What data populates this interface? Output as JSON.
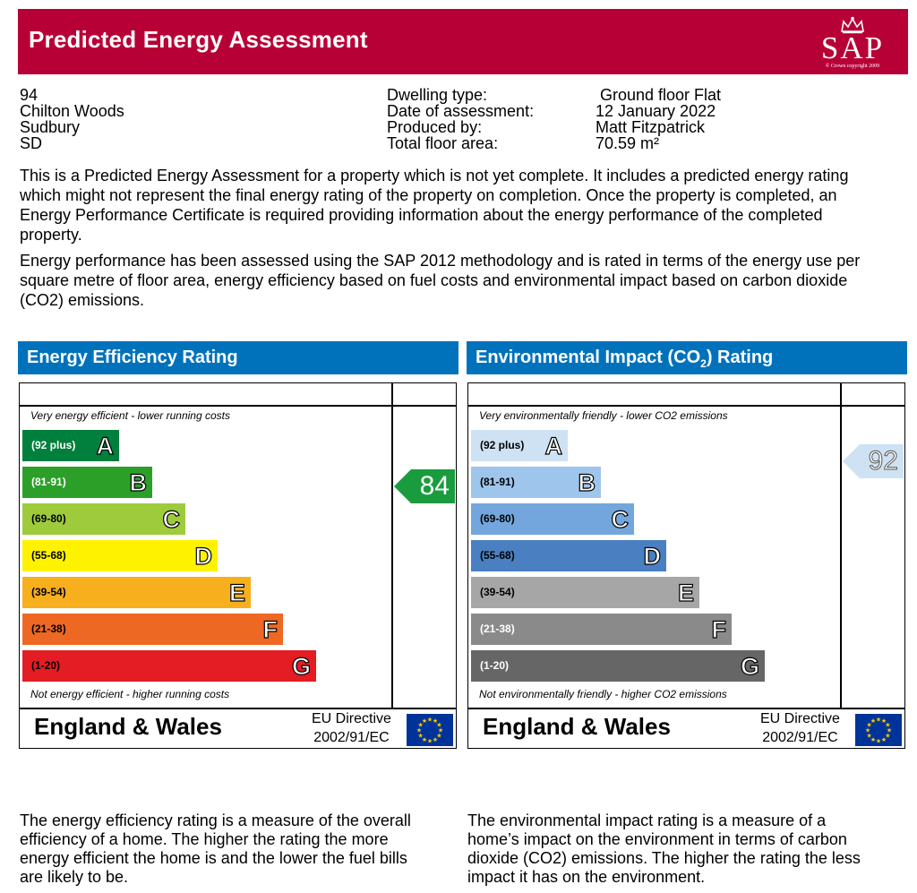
{
  "header": {
    "title": "Predicted Energy Assessment",
    "logo_text": "SAP",
    "logo_copyright": "© Crown copyright 2009"
  },
  "address": {
    "line1": "94",
    "line2": "Chilton Woods",
    "line3": "Sudbury",
    "line4": "SD"
  },
  "details": [
    {
      "label": "Dwelling type:",
      "value": "Ground floor Flat"
    },
    {
      "label": "Date of assessment:",
      "value": "12 January 2022"
    },
    {
      "label": "Produced by:",
      "value": "Matt Fitzpatrick"
    },
    {
      "label": "Total floor area:",
      "value": "70.59 m²"
    }
  ],
  "intro": {
    "p1": "This is a Predicted Energy Assessment for a property which is not yet complete. It includes a predicted energy rating which might not represent the final energy rating of the property on completion. Once the property is completed, an Energy Performance Certificate is required providing information about the energy performance of the completed property.",
    "p2": "Energy performance has been assessed using the SAP 2012 methodology and is rated in terms of the energy use per square metre of floor area, energy efficiency based on fuel costs and environmental impact based on carbon dioxide (CO2) emissions."
  },
  "efficiency": {
    "title": "Energy Efficiency Rating",
    "top_hint": "Very energy efficient - lower running costs",
    "bottom_hint": "Not energy efficient - higher running costs",
    "region": "England & Wales",
    "eu_line1": "EU Directive",
    "eu_line2": "2002/91/EC",
    "rating": "84",
    "rating_color": "#1a9c3e",
    "bands": [
      {
        "range": "(92 plus)",
        "letter": "A",
        "color": "#007f3d",
        "text_color": "#ffffff"
      },
      {
        "range": "(81-91)",
        "letter": "B",
        "color": "#2c9f29",
        "text_color": "#ffffff"
      },
      {
        "range": "(69-80)",
        "letter": "C",
        "color": "#9dcb3c",
        "text_color": "#000000"
      },
      {
        "range": "(55-68)",
        "letter": "D",
        "color": "#fff200",
        "text_color": "#000000"
      },
      {
        "range": "(39-54)",
        "letter": "E",
        "color": "#f7af1d",
        "text_color": "#000000"
      },
      {
        "range": "(21-38)",
        "letter": "F",
        "color": "#ed6823",
        "text_color": "#000000"
      },
      {
        "range": "(1-20)",
        "letter": "G",
        "color": "#e31d23",
        "text_color": "#000000"
      }
    ]
  },
  "environmental": {
    "title_main": "Environmental Impact (CO",
    "title_sub": "2",
    "title_end": ") Rating",
    "top_hint": "Very environmentally friendly - lower CO2 emissions",
    "bottom_hint": "Not environmentally friendly - higher CO2 emissions",
    "region": "England & Wales",
    "eu_line1": "EU Directive",
    "eu_line2": "2002/91/EC",
    "rating": "92",
    "rating_color": "#cfe2f3",
    "bands": [
      {
        "range": "(92 plus)",
        "letter": "A",
        "color": "#cfe2f3",
        "text_color": "#000000"
      },
      {
        "range": "(81-91)",
        "letter": "B",
        "color": "#9ec5ec",
        "text_color": "#000000"
      },
      {
        "range": "(69-80)",
        "letter": "C",
        "color": "#72a6dc",
        "text_color": "#000000"
      },
      {
        "range": "(55-68)",
        "letter": "D",
        "color": "#4a7fc1",
        "text_color": "#000000"
      },
      {
        "range": "(39-54)",
        "letter": "E",
        "color": "#a6a6a6",
        "text_color": "#000000"
      },
      {
        "range": "(21-38)",
        "letter": "F",
        "color": "#8a8a8a",
        "text_color": "#ffffff"
      },
      {
        "range": "(1-20)",
        "letter": "G",
        "color": "#666666",
        "text_color": "#ffffff"
      }
    ]
  },
  "footer": {
    "left": "The energy efficiency rating is a measure of the overall efficiency of a home. The higher the rating the more energy efficient the home is and the lower the fuel bills are likely to be.",
    "right": "The environmental impact rating is a measure of a home’s impact on the environment in terms of carbon dioxide (CO2) emissions. The higher the rating the less impact it has on the environment."
  }
}
